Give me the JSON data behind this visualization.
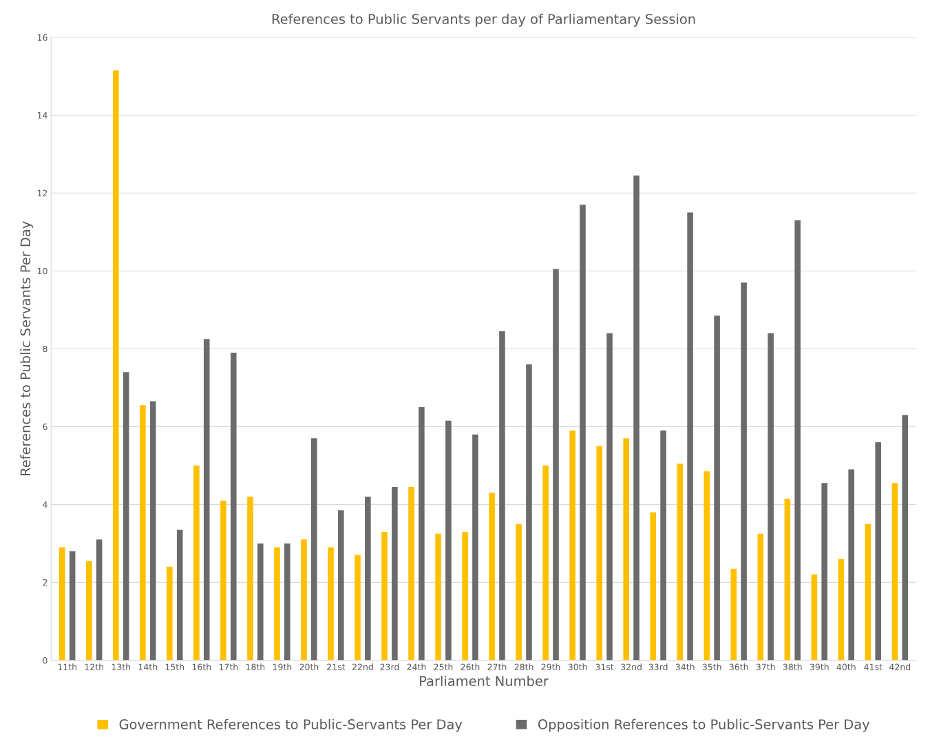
{
  "chart_data": {
    "type": "bar",
    "title": "References to Public Servants per day of Parliamentary Session",
    "xlabel": "Parliament Number",
    "ylabel": "References to Public Servants Per Day",
    "categories": [
      "11th",
      "12th",
      "13th",
      "14th",
      "15th",
      "16th",
      "17th",
      "18th",
      "19th",
      "20th",
      "21st",
      "22nd",
      "23rd",
      "24th",
      "25th",
      "26th",
      "27th",
      "28th",
      "29th",
      "30th",
      "31st",
      "32nd",
      "33rd",
      "34th",
      "35th",
      "36th",
      "37th",
      "38th",
      "39th",
      "40th",
      "41st",
      "42nd"
    ],
    "series": [
      {
        "name": "Government References to Public-Servants Per Day",
        "color": "#ffc000",
        "values": [
          2.9,
          2.55,
          15.15,
          6.55,
          2.4,
          5.0,
          4.1,
          4.2,
          2.9,
          3.1,
          2.9,
          2.7,
          3.3,
          4.45,
          3.25,
          3.3,
          4.3,
          3.5,
          5.0,
          5.9,
          5.5,
          5.7,
          3.8,
          5.05,
          4.85,
          2.35,
          3.25,
          4.15,
          2.2,
          2.6,
          3.5,
          4.55
        ]
      },
      {
        "name": "Opposition References to Public-Servants Per Day",
        "color": "#6b6b6b",
        "values": [
          2.8,
          3.1,
          7.4,
          6.65,
          3.35,
          8.25,
          7.9,
          3.0,
          3.0,
          5.7,
          3.85,
          4.2,
          4.45,
          6.5,
          6.15,
          5.8,
          8.45,
          7.6,
          10.05,
          11.7,
          8.4,
          12.45,
          5.9,
          11.5,
          8.85,
          9.7,
          8.4,
          11.3,
          4.55,
          4.9,
          5.6,
          6.3
        ]
      }
    ],
    "ylim": [
      0,
      16
    ],
    "yticks": [
      0,
      2,
      4,
      6,
      8,
      10,
      12,
      14,
      16
    ],
    "grid": "y",
    "legend": "bottom"
  }
}
